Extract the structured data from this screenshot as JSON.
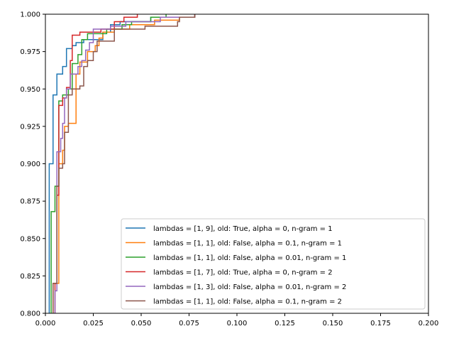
{
  "chart_data": {
    "type": "line",
    "title": "",
    "xlabel": "",
    "ylabel": "",
    "xlim": [
      0.0,
      0.2
    ],
    "ylim": [
      0.8,
      1.0
    ],
    "x_ticks": [
      "0.000",
      "0.025",
      "0.050",
      "0.075",
      "0.100",
      "0.125",
      "0.150",
      "0.175",
      "0.200"
    ],
    "y_ticks": [
      "0.800",
      "0.825",
      "0.850",
      "0.875",
      "0.900",
      "0.925",
      "0.950",
      "0.975",
      "1.000"
    ],
    "grid": false,
    "legend_position": "lower-right",
    "series": [
      {
        "name": "lambdas = [1, 9], old: True, alpha = 0, n-gram = 1",
        "color": "#1f77b4",
        "points": [
          [
            0.002,
            0.8
          ],
          [
            0.002,
            0.9
          ],
          [
            0.004,
            0.9
          ],
          [
            0.004,
            0.946
          ],
          [
            0.006,
            0.946
          ],
          [
            0.006,
            0.96
          ],
          [
            0.009,
            0.96
          ],
          [
            0.009,
            0.965
          ],
          [
            0.011,
            0.965
          ],
          [
            0.011,
            0.977
          ],
          [
            0.014,
            0.977
          ],
          [
            0.014,
            0.979
          ],
          [
            0.016,
            0.979
          ],
          [
            0.016,
            0.981
          ],
          [
            0.02,
            0.981
          ],
          [
            0.02,
            0.983
          ],
          [
            0.03,
            0.983
          ],
          [
            0.03,
            0.988
          ],
          [
            0.034,
            0.988
          ],
          [
            0.034,
            0.993
          ],
          [
            0.039,
            0.993
          ],
          [
            0.039,
            0.995
          ],
          [
            0.055,
            0.995
          ],
          [
            0.055,
            0.998
          ],
          [
            0.078,
            0.998
          ],
          [
            0.078,
            1.0
          ]
        ]
      },
      {
        "name": "lambdas = [1, 1], old: False, alpha = 0.1, n-gram = 1",
        "color": "#ff7f0e",
        "points": [
          [
            0.004,
            0.8
          ],
          [
            0.004,
            0.82
          ],
          [
            0.007,
            0.82
          ],
          [
            0.007,
            0.9
          ],
          [
            0.009,
            0.9
          ],
          [
            0.009,
            0.909
          ],
          [
            0.01,
            0.909
          ],
          [
            0.01,
            0.925
          ],
          [
            0.012,
            0.925
          ],
          [
            0.012,
            0.927
          ],
          [
            0.016,
            0.927
          ],
          [
            0.016,
            0.96
          ],
          [
            0.018,
            0.96
          ],
          [
            0.018,
            0.968
          ],
          [
            0.022,
            0.968
          ],
          [
            0.022,
            0.975
          ],
          [
            0.026,
            0.975
          ],
          [
            0.026,
            0.979
          ],
          [
            0.028,
            0.979
          ],
          [
            0.028,
            0.984
          ],
          [
            0.03,
            0.984
          ],
          [
            0.03,
            0.988
          ],
          [
            0.036,
            0.988
          ],
          [
            0.036,
            0.99
          ],
          [
            0.044,
            0.99
          ],
          [
            0.044,
            0.993
          ],
          [
            0.057,
            0.993
          ],
          [
            0.057,
            0.996
          ],
          [
            0.07,
            0.996
          ],
          [
            0.07,
            0.998
          ],
          [
            0.078,
            0.998
          ],
          [
            0.078,
            1.0
          ]
        ]
      },
      {
        "name": "lambdas = [1, 1], old: False, alpha = 0.01, n-gram = 1",
        "color": "#2ca02c",
        "points": [
          [
            0.003,
            0.8
          ],
          [
            0.003,
            0.868
          ],
          [
            0.005,
            0.868
          ],
          [
            0.005,
            0.885
          ],
          [
            0.007,
            0.885
          ],
          [
            0.007,
            0.942
          ],
          [
            0.009,
            0.942
          ],
          [
            0.009,
            0.946
          ],
          [
            0.012,
            0.946
          ],
          [
            0.012,
            0.95
          ],
          [
            0.014,
            0.95
          ],
          [
            0.014,
            0.967
          ],
          [
            0.017,
            0.967
          ],
          [
            0.017,
            0.973
          ],
          [
            0.019,
            0.973
          ],
          [
            0.019,
            0.983
          ],
          [
            0.022,
            0.983
          ],
          [
            0.022,
            0.987
          ],
          [
            0.032,
            0.987
          ],
          [
            0.032,
            0.99
          ],
          [
            0.04,
            0.99
          ],
          [
            0.04,
            0.993
          ],
          [
            0.045,
            0.993
          ],
          [
            0.045,
            0.995
          ],
          [
            0.055,
            0.995
          ],
          [
            0.055,
            0.998
          ],
          [
            0.063,
            0.998
          ],
          [
            0.063,
            1.0
          ]
        ]
      },
      {
        "name": "lambdas = [1, 7], old: True, alpha = 0, n-gram = 2",
        "color": "#d62728",
        "points": [
          [
            0.005,
            0.8
          ],
          [
            0.005,
            0.82
          ],
          [
            0.006,
            0.82
          ],
          [
            0.006,
            0.879
          ],
          [
            0.007,
            0.879
          ],
          [
            0.007,
            0.939
          ],
          [
            0.009,
            0.939
          ],
          [
            0.009,
            0.944
          ],
          [
            0.011,
            0.944
          ],
          [
            0.011,
            0.951
          ],
          [
            0.013,
            0.951
          ],
          [
            0.013,
            0.969
          ],
          [
            0.014,
            0.969
          ],
          [
            0.014,
            0.986
          ],
          [
            0.018,
            0.986
          ],
          [
            0.018,
            0.988
          ],
          [
            0.029,
            0.988
          ],
          [
            0.029,
            0.99
          ],
          [
            0.036,
            0.99
          ],
          [
            0.036,
            0.995
          ],
          [
            0.041,
            0.995
          ],
          [
            0.041,
            0.998
          ],
          [
            0.048,
            0.998
          ],
          [
            0.048,
            1.0
          ]
        ]
      },
      {
        "name": "lambdas = [1, 3], old: False, alpha = 0.01, n-gram = 2",
        "color": "#9467bd",
        "points": [
          [
            0.005,
            0.8
          ],
          [
            0.005,
            0.815
          ],
          [
            0.006,
            0.815
          ],
          [
            0.006,
            0.908
          ],
          [
            0.008,
            0.908
          ],
          [
            0.008,
            0.917
          ],
          [
            0.009,
            0.917
          ],
          [
            0.009,
            0.927
          ],
          [
            0.01,
            0.927
          ],
          [
            0.01,
            0.944
          ],
          [
            0.011,
            0.944
          ],
          [
            0.011,
            0.95
          ],
          [
            0.013,
            0.95
          ],
          [
            0.013,
            0.96
          ],
          [
            0.017,
            0.96
          ],
          [
            0.017,
            0.965
          ],
          [
            0.019,
            0.965
          ],
          [
            0.019,
            0.969
          ],
          [
            0.021,
            0.969
          ],
          [
            0.021,
            0.976
          ],
          [
            0.023,
            0.976
          ],
          [
            0.023,
            0.981
          ],
          [
            0.025,
            0.981
          ],
          [
            0.025,
            0.99
          ],
          [
            0.034,
            0.99
          ],
          [
            0.034,
            0.992
          ],
          [
            0.042,
            0.992
          ],
          [
            0.042,
            0.995
          ],
          [
            0.06,
            0.995
          ],
          [
            0.06,
            0.998
          ],
          [
            0.078,
            0.998
          ],
          [
            0.078,
            1.0
          ]
        ]
      },
      {
        "name": "lambdas = [1, 1], old: False, alpha = 0.1, n-gram = 2",
        "color": "#8c564b",
        "points": [
          [
            0.004,
            0.8
          ],
          [
            0.004,
            0.82
          ],
          [
            0.006,
            0.82
          ],
          [
            0.006,
            0.885
          ],
          [
            0.007,
            0.885
          ],
          [
            0.007,
            0.897
          ],
          [
            0.009,
            0.897
          ],
          [
            0.009,
            0.9
          ],
          [
            0.01,
            0.9
          ],
          [
            0.01,
            0.921
          ],
          [
            0.012,
            0.921
          ],
          [
            0.012,
            0.946
          ],
          [
            0.014,
            0.946
          ],
          [
            0.014,
            0.95
          ],
          [
            0.018,
            0.95
          ],
          [
            0.018,
            0.952
          ],
          [
            0.02,
            0.952
          ],
          [
            0.02,
            0.965
          ],
          [
            0.022,
            0.965
          ],
          [
            0.022,
            0.969
          ],
          [
            0.025,
            0.969
          ],
          [
            0.025,
            0.975
          ],
          [
            0.027,
            0.975
          ],
          [
            0.027,
            0.982
          ],
          [
            0.036,
            0.982
          ],
          [
            0.036,
            0.99
          ],
          [
            0.052,
            0.99
          ],
          [
            0.052,
            0.992
          ],
          [
            0.069,
            0.992
          ],
          [
            0.069,
            0.995
          ],
          [
            0.07,
            0.995
          ],
          [
            0.07,
            0.998
          ],
          [
            0.078,
            0.998
          ],
          [
            0.078,
            1.0
          ]
        ]
      }
    ]
  }
}
